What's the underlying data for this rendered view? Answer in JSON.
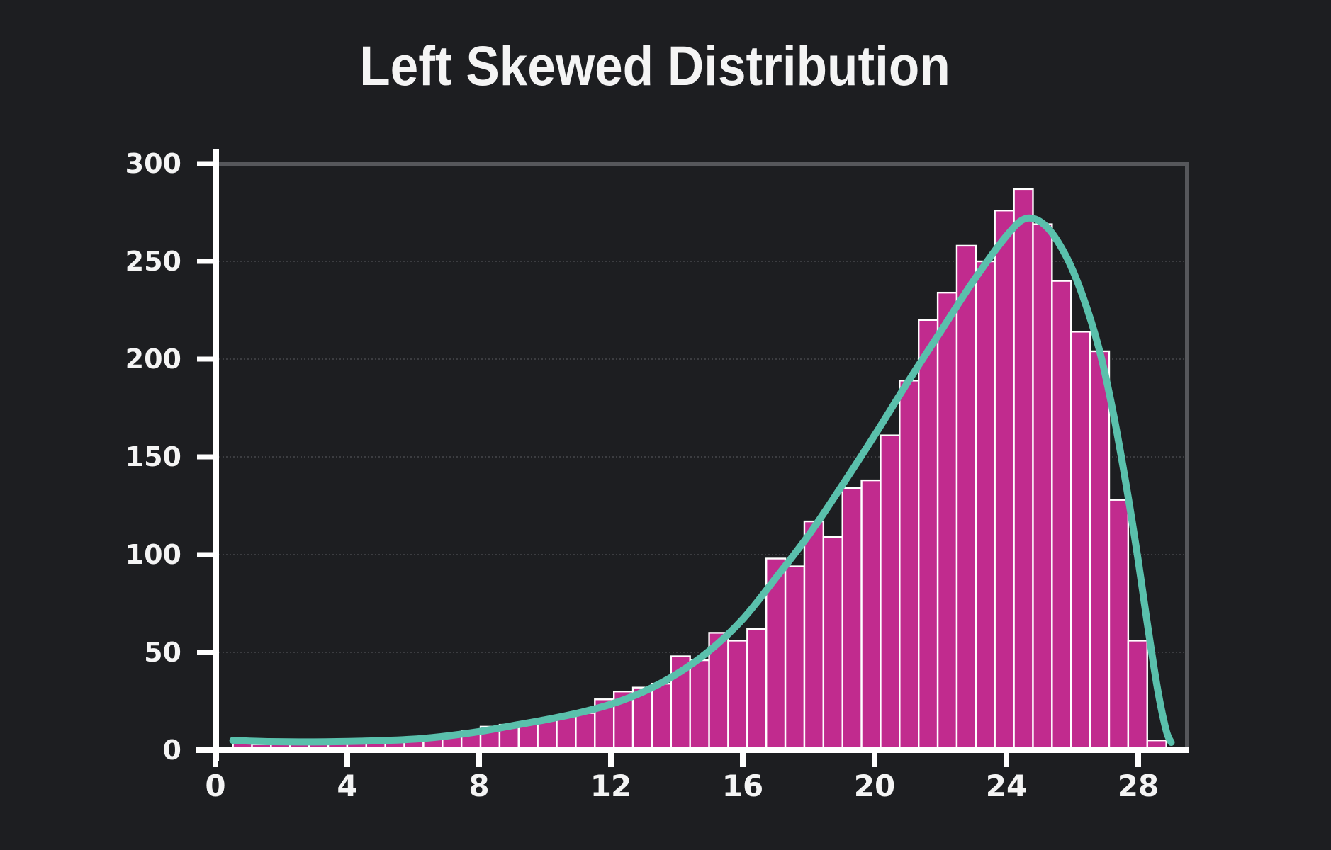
{
  "title": "Left Skewed Distribution",
  "chart_data": {
    "type": "histogram",
    "title": "Left Skewed Distribution",
    "xlabel": "",
    "ylabel": "",
    "xlim": [
      0,
      29.4
    ],
    "ylim": [
      0,
      300
    ],
    "xticks": [
      0,
      4,
      8,
      12,
      16,
      20,
      24,
      28
    ],
    "yticks": [
      0,
      50,
      100,
      150,
      200,
      250,
      300
    ],
    "grid": "horizontal dotted gridlines at each y tick",
    "legend": "none",
    "bins": {
      "start": 0.53,
      "width": 0.578,
      "count": 49
    },
    "values": [
      4,
      3,
      3,
      4,
      3,
      4,
      4,
      4,
      5,
      6,
      6,
      8,
      10,
      12,
      13,
      14,
      16,
      18,
      19,
      26,
      30,
      32,
      34,
      48,
      46,
      60,
      56,
      62,
      98,
      94,
      117,
      109,
      134,
      138,
      161,
      189,
      220,
      234,
      258,
      250,
      276,
      287,
      269,
      240,
      214,
      204,
      128,
      56,
      5
    ],
    "kde_curve": {
      "x": [
        0.53,
        1.5,
        3,
        4.5,
        6,
        7,
        8,
        9,
        10,
        11,
        12,
        13,
        14,
        15,
        16,
        17,
        18,
        19,
        20,
        21,
        22,
        23,
        24,
        24.6,
        25.2,
        25.8,
        26.3,
        26.8,
        27.2,
        27.6,
        28,
        28.3,
        28.6,
        28.85,
        29
      ],
      "y": [
        5,
        4.4,
        4.2,
        4.6,
        5.6,
        7.2,
        9.5,
        12.5,
        15.5,
        19,
        23.5,
        30,
        39,
        51,
        67,
        88,
        110,
        135,
        161,
        188,
        214,
        240,
        263,
        272,
        268,
        253,
        233,
        206,
        176,
        139,
        97,
        62,
        30,
        10,
        4
      ]
    },
    "colors": {
      "background": "#1d1e21",
      "bar_fill": "#c12b8e",
      "bar_edge": "#ffffff",
      "curve": "#5ac0ac",
      "axis_white": "#ffffff",
      "spine_gray": "#56575b",
      "gridline": "#3c3d41",
      "text": "#f4f4f4"
    }
  }
}
